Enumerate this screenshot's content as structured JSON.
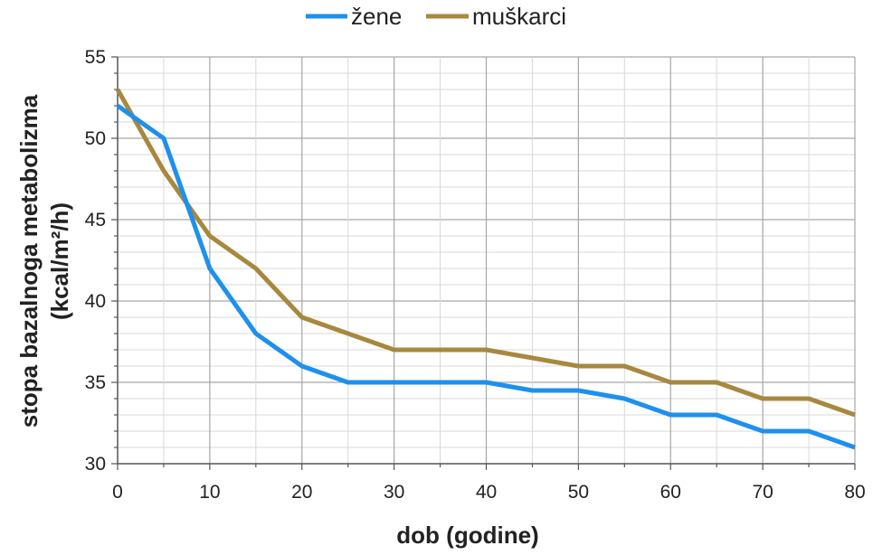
{
  "chart_data": {
    "type": "line",
    "xlabel": "dob (godine)",
    "ylabel_line1": "stopa bazalnoga metabolizma",
    "ylabel_line2": "(kcal/m²/h)",
    "xlim": [
      0,
      80
    ],
    "ylim": [
      30,
      55
    ],
    "x_major_ticks": [
      0,
      10,
      20,
      30,
      40,
      50,
      60,
      70,
      80
    ],
    "x_minor_ticks": [
      5,
      15,
      25,
      35,
      45,
      55,
      65,
      75
    ],
    "y_major_ticks": [
      30,
      35,
      40,
      45,
      50,
      55
    ],
    "y_minor_step": 1,
    "grid": true,
    "legend_position": "top-center",
    "series": [
      {
        "name": "žene",
        "color": "#1e90ee",
        "x": [
          0,
          5,
          10,
          15,
          20,
          25,
          30,
          35,
          40,
          45,
          50,
          55,
          60,
          65,
          70,
          75,
          80
        ],
        "values": [
          52,
          50,
          42,
          38,
          36,
          35,
          35,
          35,
          35,
          34.5,
          34.5,
          34,
          33,
          33,
          32,
          32,
          31
        ]
      },
      {
        "name": "muškarci",
        "color": "#a8883e",
        "x": [
          0,
          5,
          10,
          15,
          20,
          25,
          30,
          35,
          40,
          45,
          50,
          55,
          60,
          65,
          70,
          75,
          80
        ],
        "values": [
          53,
          48,
          44,
          42,
          39,
          38,
          37,
          37,
          37,
          36.5,
          36,
          36,
          35,
          35,
          34,
          34,
          33
        ]
      }
    ]
  }
}
